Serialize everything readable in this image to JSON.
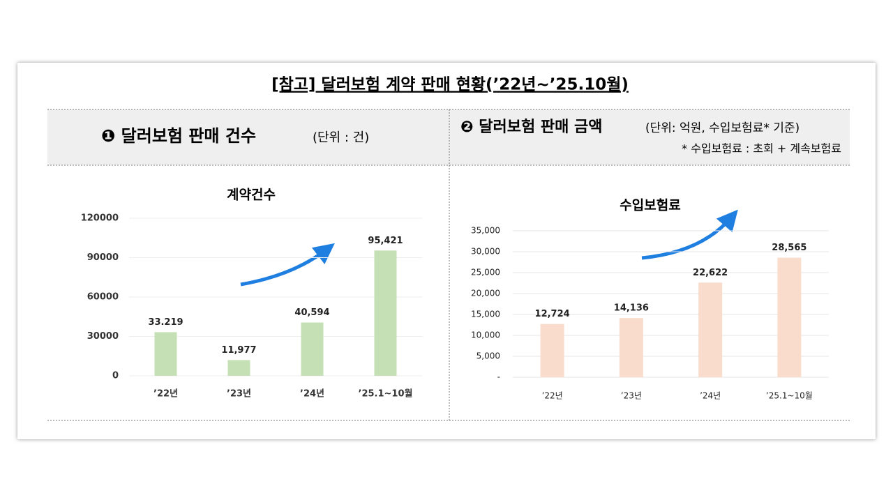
{
  "header": {
    "title": "[참고] 달러보험 계약 판매 현황(’22년~’25.10월)",
    "left_heading": "❶ 달러보험 판매 건수",
    "left_unit": "(단위 : 건)",
    "right_heading": "❷ 달러보험 판매 금액",
    "right_unit": "(단위: 억원, 수입보험료* 기준)",
    "right_note": "* 수입보험료 : 초회 + 계속보험료"
  },
  "chart_data": [
    {
      "type": "bar",
      "title": "계약건수",
      "categories": [
        "’22년",
        "’23년",
        "’24년",
        "’25.1~10월"
      ],
      "values": [
        33219,
        11977,
        40594,
        95421
      ],
      "value_labels": [
        "33.219",
        "11,977",
        "40,594",
        "95,421"
      ],
      "color": "#c5e0b4",
      "ylim": [
        0,
        120000
      ],
      "yticks": [
        0,
        30000,
        60000,
        90000,
        120000
      ],
      "grid": true
    },
    {
      "type": "bar",
      "title": "수입보험료",
      "categories": [
        "’22년",
        "’23년",
        "’24년",
        "’25.1~10월"
      ],
      "values": [
        12724,
        14136,
        22622,
        28565
      ],
      "value_labels": [
        "12,724",
        "14,136",
        "22,622",
        "28,565"
      ],
      "color": "#f9dccc",
      "ylim": [
        0,
        35000
      ],
      "yticks": [
        {
          "value": 0,
          "label": "-"
        },
        {
          "value": 5000,
          "label": "5,000"
        },
        {
          "value": 10000,
          "label": "10,000"
        },
        {
          "value": 15000,
          "label": "15,000"
        },
        {
          "value": 20000,
          "label": "20,000"
        },
        {
          "value": 25000,
          "label": "25,000"
        },
        {
          "value": 30000,
          "label": "30,000"
        },
        {
          "value": 35000,
          "label": "35,000"
        }
      ],
      "grid": true
    }
  ]
}
